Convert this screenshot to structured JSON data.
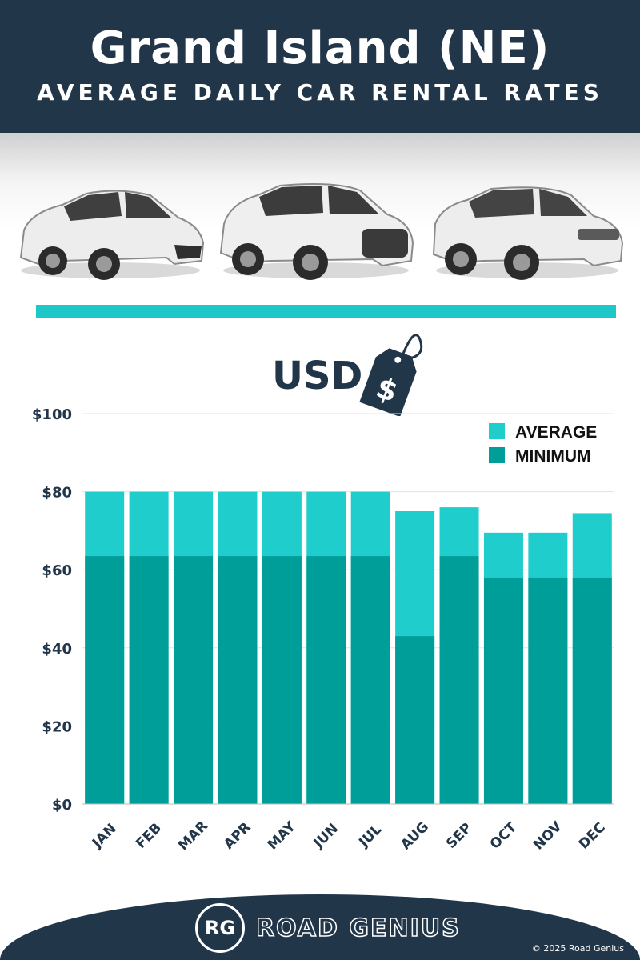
{
  "header": {
    "title": "Grand Island (NE)",
    "subtitle": "AVERAGE DAILY CAR RENTAL RATES"
  },
  "currency_label": "USD",
  "tag_icon": "price-tag-dollar-icon",
  "cars": [
    "hatchback-car-image",
    "suv-car-image",
    "luxury-suv-car-image"
  ],
  "colors": {
    "navy": "#22364a",
    "average": "#1ecdcc",
    "minimum": "#009e99",
    "accent": "#1ec8c8"
  },
  "chart_data": {
    "type": "bar",
    "stacked_overlay": true,
    "categories": [
      "JAN",
      "FEB",
      "MAR",
      "APR",
      "MAY",
      "JUN",
      "JUL",
      "AUG",
      "SEP",
      "OCT",
      "NOV",
      "DEC"
    ],
    "series": [
      {
        "name": "AVERAGE",
        "color": "#1ecdcc",
        "values": [
          80,
          80,
          80,
          80,
          80,
          80,
          80,
          75,
          76,
          69.5,
          69.5,
          74.5
        ]
      },
      {
        "name": "MINIMUM",
        "color": "#009e99",
        "values": [
          63.5,
          63.5,
          63.5,
          63.5,
          63.5,
          63.5,
          63.5,
          43,
          63.5,
          58,
          58,
          58
        ]
      }
    ],
    "ylim": [
      0,
      100
    ],
    "yticks": [
      0,
      20,
      40,
      60,
      80,
      100
    ],
    "ytick_labels": [
      "$0",
      "$20",
      "$40",
      "$60",
      "$80",
      "$100"
    ],
    "grid": true,
    "legend": "top-right"
  },
  "footer": {
    "badge": "RG",
    "brand": "ROAD GENIUS",
    "copyright": "© 2025 Road Genius"
  }
}
